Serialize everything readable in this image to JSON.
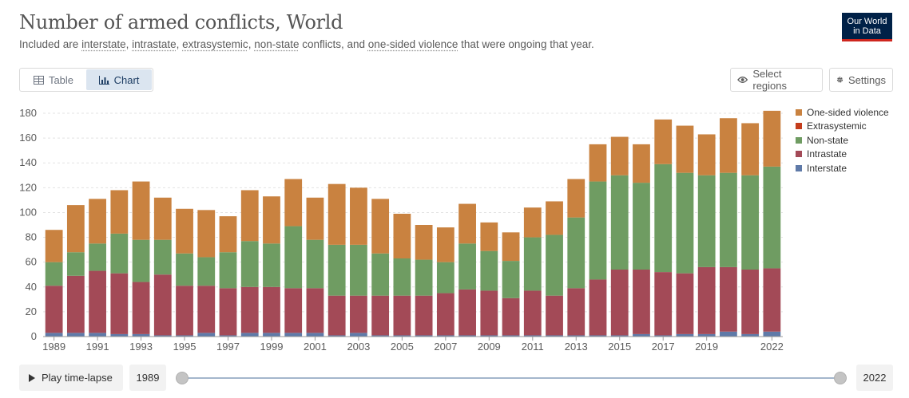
{
  "header": {
    "title": "Number of armed conflicts, World",
    "subtitle": {
      "prefix": "Included are ",
      "terms": [
        "interstate",
        "intrastate",
        "extrasystemic",
        "non-state"
      ],
      "middle": " conflicts, and ",
      "last_term": "one-sided violence",
      "suffix": " that were ongoing that year."
    },
    "logo": {
      "line1": "Our World",
      "line2": "in Data"
    }
  },
  "tabs": [
    {
      "label": "Table",
      "icon": "table-icon"
    },
    {
      "label": "Chart",
      "icon": "chart-icon",
      "active": true
    }
  ],
  "controls": {
    "select_regions": "Select regions",
    "settings": "Settings"
  },
  "timeline": {
    "play_label": "Play time-lapse",
    "start_year": "1989",
    "end_year": "2022"
  },
  "colors": {
    "interstate": "#5f7aa8",
    "intrastate": "#a34a57",
    "extrasystemic": "#c43d1c",
    "non_state": "#6f9c62",
    "one_sided": "#c98240",
    "grid": "#e3e3e3",
    "axis": "#5b5b5b"
  },
  "chart_data": {
    "type": "bar",
    "stacked": true,
    "categories": [
      1989,
      1990,
      1991,
      1992,
      1993,
      1994,
      1995,
      1996,
      1997,
      1998,
      1999,
      2000,
      2001,
      2002,
      2003,
      2004,
      2005,
      2006,
      2007,
      2008,
      2009,
      2010,
      2011,
      2012,
      2013,
      2014,
      2015,
      2016,
      2017,
      2018,
      2019,
      2020,
      2021,
      2022
    ],
    "x_tick_labels": [
      "1989",
      "1991",
      "1993",
      "1995",
      "1997",
      "1999",
      "2001",
      "2003",
      "2005",
      "2007",
      "2009",
      "2011",
      "2013",
      "2015",
      "2017",
      "2019",
      "2022"
    ],
    "ylim": [
      0,
      180
    ],
    "yticks": [
      0,
      20,
      40,
      60,
      80,
      100,
      120,
      140,
      160,
      180
    ],
    "grid": true,
    "legend_position": "right",
    "series": [
      {
        "name": "Interstate",
        "key": "interstate",
        "values": [
          3,
          3,
          3,
          2,
          2,
          1,
          1,
          3,
          1,
          3,
          3,
          3,
          3,
          1,
          3,
          1,
          1,
          1,
          1,
          1,
          1,
          1,
          1,
          1,
          1,
          1,
          1,
          2,
          1,
          2,
          2,
          4,
          2,
          4
        ]
      },
      {
        "name": "Intrastate",
        "key": "intrastate",
        "values": [
          38,
          46,
          50,
          49,
          42,
          49,
          40,
          38,
          38,
          37,
          37,
          36,
          36,
          32,
          30,
          32,
          32,
          32,
          34,
          37,
          36,
          30,
          36,
          32,
          38,
          45,
          53,
          52,
          51,
          49,
          54,
          52,
          52,
          51
        ]
      },
      {
        "name": "Extrasystemic",
        "key": "extrasystemic",
        "values": [
          0,
          0,
          0,
          0,
          0,
          0,
          0,
          0,
          0,
          0,
          0,
          0,
          0,
          0,
          0,
          0,
          0,
          0,
          0,
          0,
          0,
          0,
          0,
          0,
          0,
          0,
          0,
          0,
          0,
          0,
          0,
          0,
          0,
          0
        ]
      },
      {
        "name": "Non-state",
        "key": "non_state",
        "values": [
          19,
          19,
          22,
          32,
          34,
          28,
          26,
          23,
          29,
          37,
          35,
          50,
          39,
          41,
          41,
          34,
          30,
          29,
          25,
          37,
          32,
          30,
          43,
          49,
          57,
          79,
          76,
          70,
          87,
          81,
          74,
          76,
          76,
          82
        ]
      },
      {
        "name": "One-sided violence",
        "key": "one_sided",
        "values": [
          26,
          38,
          36,
          35,
          47,
          34,
          36,
          38,
          29,
          41,
          38,
          38,
          34,
          49,
          46,
          44,
          36,
          28,
          28,
          32,
          23,
          23,
          24,
          27,
          31,
          30,
          31,
          31,
          36,
          38,
          33,
          44,
          42,
          45
        ]
      }
    ],
    "legend_order": [
      "One-sided violence",
      "Extrasystemic",
      "Non-state",
      "Intrastate",
      "Interstate"
    ]
  }
}
